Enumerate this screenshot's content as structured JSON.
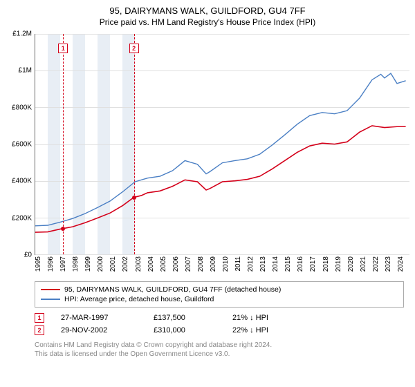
{
  "title": "95, DAIRYMANS WALK, GUILDFORD, GU4 7FF",
  "subtitle": "Price paid vs. HM Land Registry's House Price Index (HPI)",
  "chart": {
    "type": "line",
    "ylim": [
      0,
      1200000
    ],
    "yticks": [
      {
        "v": 0,
        "label": "£0"
      },
      {
        "v": 200000,
        "label": "£200K"
      },
      {
        "v": 400000,
        "label": "£400K"
      },
      {
        "v": 600000,
        "label": "£600K"
      },
      {
        "v": 800000,
        "label": "£800K"
      },
      {
        "v": 1000000,
        "label": "£1M"
      },
      {
        "v": 1200000,
        "label": "£1.2M"
      }
    ],
    "xlim": [
      1995,
      2025
    ],
    "xticks": [
      1995,
      1996,
      1997,
      1998,
      1999,
      2000,
      2001,
      2002,
      2003,
      2004,
      2005,
      2006,
      2007,
      2008,
      2009,
      2010,
      2011,
      2012,
      2013,
      2014,
      2015,
      2016,
      2017,
      2018,
      2019,
      2020,
      2021,
      2022,
      2023,
      2024
    ],
    "background_color": "#ffffff",
    "grid_color": "#e0e0e0",
    "band_color": "#e8eef5",
    "bands": [
      [
        1996,
        1997
      ],
      [
        1998,
        1999
      ],
      [
        2000,
        2001
      ],
      [
        2002,
        2003
      ]
    ],
    "series": [
      {
        "name": "property",
        "label": "95, DAIRYMANS WALK, GUILDFORD, GU4 7FF (detached house)",
        "color": "#d4001a",
        "line_width": 1.6,
        "data": [
          [
            1995,
            120000
          ],
          [
            1996,
            122000
          ],
          [
            1997,
            137500
          ],
          [
            1998,
            150000
          ],
          [
            1999,
            172000
          ],
          [
            2000,
            198000
          ],
          [
            2001,
            225000
          ],
          [
            2002,
            265000
          ],
          [
            2002.9,
            310000
          ],
          [
            2003.5,
            320000
          ],
          [
            2004,
            335000
          ],
          [
            2005,
            345000
          ],
          [
            2006,
            370000
          ],
          [
            2007,
            405000
          ],
          [
            2008,
            395000
          ],
          [
            2008.7,
            350000
          ],
          [
            2009,
            358000
          ],
          [
            2010,
            395000
          ],
          [
            2011,
            400000
          ],
          [
            2012,
            408000
          ],
          [
            2013,
            425000
          ],
          [
            2014,
            465000
          ],
          [
            2015,
            510000
          ],
          [
            2016,
            555000
          ],
          [
            2017,
            590000
          ],
          [
            2018,
            605000
          ],
          [
            2019,
            600000
          ],
          [
            2020,
            612000
          ],
          [
            2021,
            665000
          ],
          [
            2022,
            700000
          ],
          [
            2023,
            690000
          ],
          [
            2024,
            695000
          ],
          [
            2024.7,
            695000
          ]
        ]
      },
      {
        "name": "hpi",
        "label": "HPI: Average price, detached house, Guildford",
        "color": "#4a7fc4",
        "line_width": 1.4,
        "data": [
          [
            1995,
            155000
          ],
          [
            1996,
            158000
          ],
          [
            1997,
            175000
          ],
          [
            1998,
            195000
          ],
          [
            1999,
            222000
          ],
          [
            2000,
            255000
          ],
          [
            2001,
            290000
          ],
          [
            2002,
            340000
          ],
          [
            2003,
            395000
          ],
          [
            2004,
            415000
          ],
          [
            2005,
            425000
          ],
          [
            2006,
            455000
          ],
          [
            2007,
            510000
          ],
          [
            2008,
            490000
          ],
          [
            2008.7,
            438000
          ],
          [
            2009,
            450000
          ],
          [
            2010,
            498000
          ],
          [
            2011,
            510000
          ],
          [
            2012,
            520000
          ],
          [
            2013,
            545000
          ],
          [
            2014,
            595000
          ],
          [
            2015,
            650000
          ],
          [
            2016,
            708000
          ],
          [
            2017,
            755000
          ],
          [
            2018,
            772000
          ],
          [
            2019,
            765000
          ],
          [
            2020,
            782000
          ],
          [
            2021,
            850000
          ],
          [
            2022,
            950000
          ],
          [
            2022.7,
            980000
          ],
          [
            2023,
            960000
          ],
          [
            2023.5,
            985000
          ],
          [
            2024,
            930000
          ],
          [
            2024.7,
            945000
          ]
        ]
      }
    ],
    "event_lines": [
      {
        "id": "1",
        "x": 1997.23,
        "color": "#d4001a"
      },
      {
        "id": "2",
        "x": 2002.91,
        "color": "#d4001a"
      }
    ],
    "event_markers": [
      {
        "id": "1",
        "x": 1997.23,
        "y": 137500,
        "color": "#d4001a"
      },
      {
        "id": "2",
        "x": 2002.91,
        "y": 310000,
        "color": "#d4001a"
      }
    ]
  },
  "legend": {
    "items": [
      {
        "color": "#d4001a",
        "label": "95, DAIRYMANS WALK, GUILDFORD, GU4 7FF (detached house)"
      },
      {
        "color": "#4a7fc4",
        "label": "HPI: Average price, detached house, Guildford"
      }
    ]
  },
  "sales": [
    {
      "badge": "1",
      "badge_color": "#d4001a",
      "date": "27-MAR-1997",
      "price": "£137,500",
      "delta": "21% ↓ HPI"
    },
    {
      "badge": "2",
      "badge_color": "#d4001a",
      "date": "29-NOV-2002",
      "price": "£310,000",
      "delta": "22% ↓ HPI"
    }
  ],
  "footer": {
    "line1": "Contains HM Land Registry data © Crown copyright and database right 2024.",
    "line2": "This data is licensed under the Open Government Licence v3.0."
  }
}
